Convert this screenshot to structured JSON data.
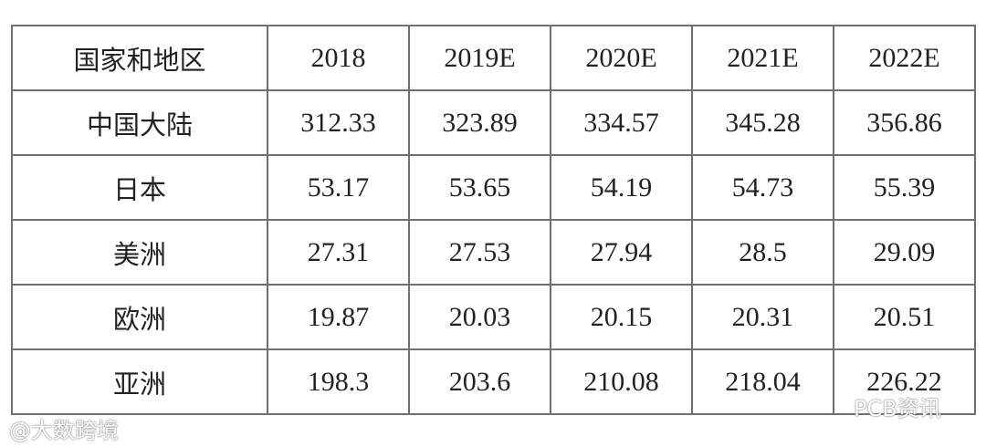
{
  "table": {
    "header": [
      "国家和地区",
      "2018",
      "2019E",
      "2020E",
      "2021E",
      "2022E"
    ],
    "rows": [
      [
        "中国大陆",
        "312.33",
        "323.89",
        "334.57",
        "345.28",
        "356.86"
      ],
      [
        "日本",
        "53.17",
        "53.65",
        "54.19",
        "54.73",
        "55.39"
      ],
      [
        "美洲",
        "27.31",
        "27.53",
        "27.94",
        "28.5",
        "29.09"
      ],
      [
        "欧洲",
        "19.87",
        "20.03",
        "20.15",
        "20.31",
        "20.51"
      ],
      [
        "亚洲",
        "198.3",
        "203.6",
        "210.08",
        "218.04",
        "226.22"
      ]
    ]
  },
  "watermarks": [
    "@大数跨境",
    "PCB资讯"
  ]
}
